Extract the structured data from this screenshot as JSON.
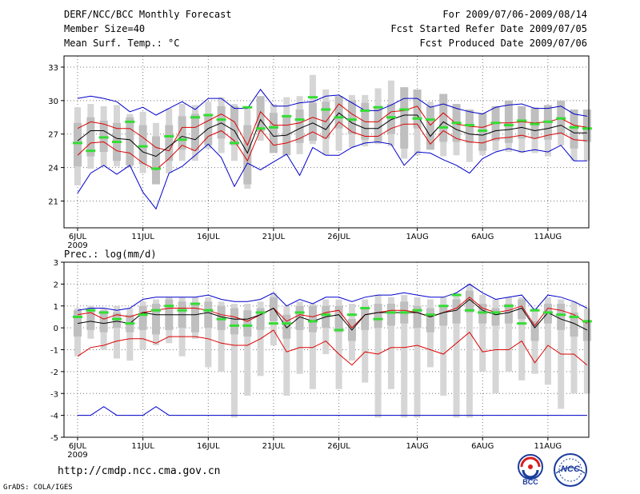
{
  "header": {
    "title": "DERF/NCC/BCC Monthly Forecast",
    "member_size": "Member Size=40",
    "variable": "Mean Surf. Temp.: °C",
    "forecast_range": "For 2009/07/06-2009/08/14",
    "started_date": "Fcst Started Refer Date 2009/07/05",
    "produced_date": "Fcst Produced Date 2009/07/06"
  },
  "footer": {
    "url": "http://cmdp.ncc.cma.gov.cn",
    "grads": "GrADS: COLA/IGES",
    "logo_bcc": "BCC",
    "logo_ncc": "NCC"
  },
  "colors": {
    "bar": "#d6d6d6",
    "box": "#bfbfbf",
    "ext": "#0000cc",
    "sd": "#dd0000",
    "mean": "#000000",
    "obs": "#33dd33"
  },
  "chart_data": [
    {
      "type": "line",
      "title": "Mean Surf. Temp.: °C",
      "ylim": [
        18.6,
        34.0
      ],
      "yticks": [
        21,
        24,
        27,
        30,
        33
      ],
      "xticks": [
        {
          "day": 0,
          "label": "6JUL",
          "sub": "2009"
        },
        {
          "day": 5,
          "label": "11JUL"
        },
        {
          "day": 10,
          "label": "16JUL"
        },
        {
          "day": 15,
          "label": "21JUL"
        },
        {
          "day": 20,
          "label": "26JUL"
        },
        {
          "day": 26,
          "label": "1AUG"
        },
        {
          "day": 31,
          "label": "6AUG"
        },
        {
          "day": 36,
          "label": "11AUG"
        }
      ],
      "grid": true,
      "series": [
        {
          "name": "max",
          "color": "ext",
          "values": [
            30.2,
            30.4,
            30.2,
            29.9,
            29.0,
            29.4,
            28.7,
            29.3,
            29.9,
            29.2,
            30.2,
            30.2,
            29.3,
            29.3,
            31.0,
            29.5,
            29.5,
            29.8,
            29.9,
            30.4,
            30.5,
            29.8,
            29.1,
            29.1,
            29.6,
            30.2,
            30.2,
            29.4,
            29.7,
            29.3,
            29.0,
            28.8,
            29.4,
            29.6,
            29.7,
            29.3,
            29.3,
            29.5,
            28.8,
            28.6
          ]
        },
        {
          "name": "plus_sd",
          "color": "sd",
          "values": [
            27.5,
            28.1,
            27.9,
            27.5,
            27.5,
            26.7,
            25.8,
            25.5,
            27.6,
            27.6,
            28.2,
            28.8,
            28.1,
            26.0,
            29.0,
            27.8,
            27.8,
            28.0,
            28.5,
            28.1,
            29.7,
            28.8,
            28.1,
            28.1,
            29.0,
            29.1,
            29.5,
            27.8,
            28.9,
            27.9,
            27.7,
            27.6,
            28.0,
            28.0,
            28.1,
            28.0,
            28.1,
            28.4,
            27.8,
            27.6
          ]
        },
        {
          "name": "mean",
          "color": "mean",
          "values": [
            26.4,
            27.3,
            27.3,
            26.6,
            26.5,
            25.4,
            25.0,
            25.9,
            26.8,
            26.5,
            27.5,
            28.0,
            27.3,
            25.3,
            28.3,
            26.8,
            26.9,
            27.5,
            28.0,
            27.4,
            28.9,
            28.0,
            27.5,
            27.5,
            28.3,
            28.7,
            28.7,
            26.8,
            28.1,
            27.4,
            27.0,
            26.9,
            27.3,
            27.4,
            27.6,
            27.3,
            27.5,
            27.8,
            27.1,
            27.1
          ]
        },
        {
          "name": "minus_sd",
          "color": "sd",
          "values": [
            25.1,
            26.2,
            26.3,
            25.5,
            25.3,
            24.4,
            23.8,
            24.8,
            26.0,
            25.5,
            26.8,
            27.3,
            26.4,
            24.6,
            27.4,
            26.0,
            26.2,
            26.6,
            27.2,
            26.6,
            28.1,
            27.2,
            26.8,
            26.8,
            27.5,
            27.9,
            27.9,
            26.1,
            27.3,
            26.6,
            26.3,
            26.2,
            26.6,
            26.7,
            26.9,
            26.6,
            26.9,
            27.1,
            26.5,
            26.4
          ]
        },
        {
          "name": "min",
          "color": "ext",
          "values": [
            21.7,
            23.5,
            24.2,
            23.4,
            24.2,
            21.8,
            20.3,
            23.5,
            24.1,
            25.1,
            26.1,
            24.9,
            22.3,
            24.4,
            23.8,
            24.5,
            25.2,
            23.3,
            25.8,
            25.1,
            25.1,
            25.8,
            26.2,
            26.3,
            26.1,
            24.2,
            25.4,
            25.3,
            24.7,
            24.2,
            23.5,
            24.8,
            25.4,
            25.7,
            25.4,
            25.6,
            25.4,
            26.0,
            24.6,
            24.6
          ]
        },
        {
          "name": "observed",
          "color": "obs",
          "values": [
            26.2,
            25.5,
            26.7,
            26.3,
            28.1,
            25.9,
            23.9,
            26.8,
            26.5,
            28.5,
            28.7,
            28.3,
            26.2,
            29.4,
            27.5,
            27.6,
            28.6,
            28.3,
            30.3,
            29.2,
            28.5,
            28.3,
            29.1,
            29.4,
            28.5,
            29.2,
            28.4,
            28.3,
            27.6,
            28.0,
            27.8,
            27.3,
            28.0,
            27.8,
            28.2,
            27.9,
            28.1,
            28.4,
            27.6,
            27.5
          ]
        },
        {
          "name": "box_upper",
          "color": "box",
          "values": [
            28.0,
            28.5,
            28.2,
            28.0,
            28.5,
            27.8,
            26.8,
            27.8,
            28.6,
            28.8,
            28.7,
            29.5,
            29.5,
            27.8,
            30.4,
            28.9,
            28.5,
            29.2,
            29.8,
            29.9,
            30.4,
            30.0,
            29.8,
            29.5,
            29.7,
            31.2,
            31.0,
            29.5,
            30.6,
            29.7,
            29.2,
            28.9,
            29.5,
            30.0,
            29.5,
            29.3,
            29.6,
            30.0,
            29.2,
            29.2
          ]
        },
        {
          "name": "box_lower",
          "color": "box",
          "values": [
            24.1,
            25.0,
            25.4,
            24.6,
            24.2,
            24.3,
            22.5,
            24.6,
            25.6,
            25.5,
            26.0,
            26.6,
            26.0,
            22.5,
            27.2,
            25.3,
            25.1,
            26.2,
            26.4,
            26.6,
            27.5,
            27.0,
            26.5,
            26.3,
            27.0,
            25.7,
            27.5,
            25.6,
            26.3,
            26.3,
            26.2,
            25.5,
            26.4,
            26.2,
            26.6,
            26.6,
            26.5,
            27.0,
            25.7,
            26.3
          ]
        },
        {
          "name": "whisker_upper",
          "color": "bar",
          "values": [
            29.4,
            29.7,
            29.5,
            29.6,
            28.8,
            29.0,
            28.0,
            29.3,
            29.7,
            29.6,
            29.9,
            30.3,
            29.7,
            29.4,
            30.0,
            29.7,
            30.3,
            30.4,
            32.3,
            31.0,
            30.4,
            30.5,
            30.5,
            31.1,
            31.8,
            30.1,
            30.1,
            29.9,
            29.6,
            29.5,
            29.0,
            28.8,
            29.4,
            30.0,
            29.3,
            29.4,
            29.2,
            29.7,
            29.0,
            29.0
          ]
        },
        {
          "name": "whisker_lower",
          "color": "bar",
          "values": [
            22.4,
            23.9,
            24.1,
            24.1,
            24.0,
            23.5,
            22.5,
            23.5,
            24.6,
            24.6,
            25.7,
            25.3,
            24.6,
            22.1,
            26.4,
            25.4,
            25.5,
            25.2,
            26.1,
            25.1,
            25.5,
            25.8,
            25.9,
            26.1,
            25.9,
            24.8,
            25.1,
            25.6,
            25.0,
            25.1,
            24.5,
            25.1,
            25.5,
            25.4,
            25.3,
            25.3,
            25.0,
            26.0,
            24.6,
            24.6
          ]
        }
      ]
    },
    {
      "type": "line",
      "title": "Prec.: log(mm/d)",
      "ylim": [
        -5,
        3
      ],
      "yticks": [
        -5,
        -4,
        -3,
        -2,
        -1,
        0,
        1,
        2,
        3
      ],
      "xticks": [
        {
          "day": 0,
          "label": "6JUL",
          "sub": "2009"
        },
        {
          "day": 5,
          "label": "11JUL"
        },
        {
          "day": 10,
          "label": "16JUL"
        },
        {
          "day": 15,
          "label": "21JUL"
        },
        {
          "day": 20,
          "label": "26JUL"
        },
        {
          "day": 26,
          "label": "1AUG"
        },
        {
          "day": 31,
          "label": "6AUG"
        },
        {
          "day": 36,
          "label": "11AUG"
        }
      ],
      "grid": true,
      "series": [
        {
          "name": "max",
          "color": "ext",
          "values": [
            0.8,
            0.9,
            0.9,
            0.8,
            0.9,
            1.3,
            1.4,
            1.4,
            1.4,
            1.4,
            1.5,
            1.3,
            1.2,
            1.2,
            1.3,
            1.6,
            1.0,
            1.3,
            1.1,
            1.4,
            1.4,
            1.2,
            1.4,
            1.5,
            1.5,
            1.6,
            1.5,
            1.4,
            1.4,
            1.6,
            2.0,
            1.6,
            1.3,
            1.4,
            1.5,
            0.8,
            1.5,
            1.4,
            1.2,
            0.9
          ]
        },
        {
          "name": "plus_sd",
          "color": "sd",
          "values": [
            0.6,
            0.7,
            0.4,
            0.6,
            0.5,
            0.7,
            0.8,
            0.9,
            0.9,
            0.9,
            0.8,
            0.6,
            0.5,
            0.3,
            0.6,
            0.9,
            0.3,
            0.6,
            0.5,
            0.7,
            0.8,
            0.0,
            0.6,
            0.7,
            0.8,
            0.8,
            0.7,
            0.5,
            0.7,
            0.9,
            1.4,
            0.9,
            0.7,
            0.8,
            1.0,
            0.1,
            0.9,
            0.8,
            0.6,
            0.2
          ]
        },
        {
          "name": "mean",
          "color": "mean",
          "values": [
            0.2,
            0.3,
            0.2,
            0.3,
            0.2,
            0.7,
            0.6,
            0.6,
            0.6,
            0.6,
            0.7,
            0.5,
            0.4,
            0.4,
            0.6,
            0.9,
            0.0,
            0.5,
            0.3,
            0.5,
            0.6,
            -0.1,
            0.6,
            0.7,
            0.7,
            0.7,
            0.7,
            0.5,
            0.7,
            0.8,
            1.3,
            0.8,
            0.6,
            0.7,
            0.9,
            0.0,
            0.7,
            0.4,
            0.2,
            -0.1
          ]
        },
        {
          "name": "minus_sd",
          "color": "sd",
          "values": [
            -1.3,
            -0.9,
            -0.8,
            -0.6,
            -0.5,
            -0.5,
            -0.7,
            -0.4,
            -0.4,
            -0.4,
            -0.5,
            -0.7,
            -0.8,
            -0.8,
            -0.5,
            -0.1,
            -1.1,
            -0.9,
            -0.9,
            -0.6,
            -1.2,
            -1.7,
            -1.1,
            -1.2,
            -0.9,
            -0.9,
            -0.8,
            -1.0,
            -1.2,
            -0.7,
            -0.2,
            -1.1,
            -1.0,
            -1.0,
            -0.6,
            -1.6,
            -0.8,
            -1.2,
            -1.2,
            -1.7
          ]
        },
        {
          "name": "min",
          "color": "ext",
          "values": [
            -4.0,
            -4.0,
            -3.6,
            -4.0,
            -4.0,
            -4.0,
            -3.6,
            -4.0,
            -4.0,
            -4.0,
            -4.0,
            -4.0,
            -4.0,
            -4.0,
            -4.0,
            -4.0,
            -4.0,
            -4.0,
            -4.0,
            -4.0,
            -4.0,
            -4.0,
            -4.0,
            -4.0,
            -4.0,
            -4.0,
            -4.0,
            -4.0,
            -4.0,
            -4.0,
            -4.0,
            -4.0,
            -4.0,
            -4.0,
            -4.0,
            -4.0,
            -4.0,
            -4.0,
            -4.0,
            -4.0
          ]
        },
        {
          "name": "observed",
          "color": "obs",
          "values": [
            0.5,
            0.8,
            0.7,
            0.4,
            0.2,
            0.6,
            0.8,
            1.0,
            0.8,
            1.1,
            0.8,
            0.4,
            0.1,
            0.1,
            0.7,
            0.2,
            0.2,
            0.7,
            0.3,
            0.6,
            -0.1,
            0.6,
            0.9,
            0.4,
            0.7,
            0.7,
            0.8,
            0.6,
            1.0,
            1.5,
            0.8,
            0.7,
            0.7,
            1.0,
            0.2,
            0.8,
            0.7,
            0.6,
            0.5,
            0.3
          ]
        },
        {
          "name": "box_upper",
          "color": "box",
          "values": [
            0.8,
            0.9,
            0.8,
            0.7,
            0.6,
            1.0,
            1.1,
            1.3,
            1.2,
            1.1,
            1.2,
            1.0,
            0.9,
            0.8,
            0.9,
            1.4,
            0.6,
            1.0,
            1.0,
            1.0,
            1.0,
            0.4,
            0.9,
            1.1,
            1.1,
            1.2,
            1.0,
            0.9,
            1.0,
            1.3,
            1.7,
            1.1,
            0.9,
            1.1,
            1.3,
            0.3,
            1.1,
            1.1,
            0.7,
            0.3
          ]
        },
        {
          "name": "box_lower",
          "color": "box",
          "values": [
            -0.4,
            -0.1,
            -0.2,
            0.0,
            -0.2,
            -0.1,
            -0.3,
            -0.1,
            0.0,
            -0.2,
            0.0,
            -0.1,
            -0.3,
            -0.4,
            -0.1,
            0.3,
            -0.5,
            -0.1,
            -0.2,
            0.0,
            -0.2,
            -0.6,
            -0.1,
            0.0,
            0.1,
            0.2,
            0.0,
            -0.2,
            0.1,
            0.2,
            0.7,
            0.2,
            0.1,
            0.2,
            0.4,
            -0.6,
            0.2,
            -0.1,
            -0.4,
            -0.6
          ]
        },
        {
          "name": "whisker_upper",
          "color": "bar",
          "values": [
            0.9,
            1.0,
            0.9,
            1.0,
            0.9,
            1.2,
            1.3,
            1.4,
            1.4,
            1.4,
            1.4,
            1.2,
            1.1,
            1.1,
            1.2,
            1.6,
            1.0,
            1.2,
            1.1,
            1.3,
            1.3,
            1.1,
            1.3,
            1.5,
            1.4,
            1.5,
            1.4,
            1.3,
            1.4,
            1.6,
            2.0,
            1.5,
            1.3,
            1.4,
            1.4,
            0.9,
            1.4,
            1.3,
            1.2,
            0.9
          ]
        },
        {
          "name": "whisker_lower",
          "color": "bar",
          "values": [
            -1.3,
            -0.5,
            -1.0,
            -1.4,
            -1.5,
            -1.0,
            -0.8,
            -0.7,
            -1.3,
            -0.5,
            -1.8,
            -2.0,
            -4.1,
            -3.1,
            -2.2,
            -0.8,
            -3.1,
            -2.1,
            -2.8,
            -1.2,
            -2.8,
            -1.5,
            -2.5,
            -4.1,
            -2.8,
            -4.1,
            -4.1,
            -1.8,
            -3.1,
            -4.1,
            -4.1,
            -2.0,
            -3.0,
            -2.0,
            -2.4,
            -2.1,
            -2.6,
            -3.7,
            -3.0,
            -3.0
          ]
        }
      ]
    }
  ]
}
